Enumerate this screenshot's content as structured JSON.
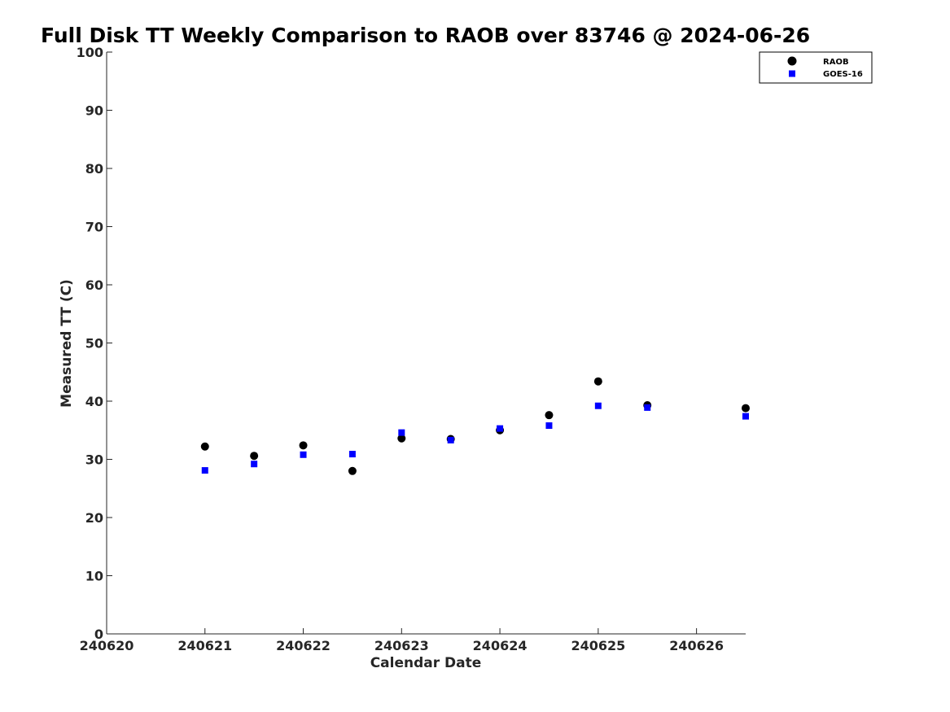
{
  "chart_data": {
    "type": "scatter",
    "title": "Full Disk TT Weekly Comparison to RAOB over 83746 @ 2024-06-26",
    "xlabel": "Calendar Date",
    "ylabel": "Measured TT (C)",
    "xlim": [
      240620,
      240626.5
    ],
    "ylim": [
      0,
      100
    ],
    "xticks": [
      240620,
      240621,
      240622,
      240623,
      240624,
      240625,
      240626
    ],
    "xtick_labels": [
      "240620",
      "240621",
      "240622",
      "240623",
      "240624",
      "240625",
      "240626"
    ],
    "yticks": [
      0,
      10,
      20,
      30,
      40,
      50,
      60,
      70,
      80,
      90,
      100
    ],
    "ytick_labels": [
      "0",
      "10",
      "20",
      "30",
      "40",
      "50",
      "60",
      "70",
      "80",
      "90",
      "100"
    ],
    "grid": false,
    "legend_position": "top-right",
    "series": [
      {
        "name": "RAOB",
        "marker": "circle",
        "color": "#000000",
        "x": [
          240621,
          240621.5,
          240622,
          240622.5,
          240623,
          240623.5,
          240624,
          240624.5,
          240625,
          240625.5,
          240626.5
        ],
        "y": [
          32.2,
          30.6,
          32.4,
          28.0,
          33.6,
          33.5,
          35.0,
          37.6,
          43.4,
          39.3,
          38.8
        ]
      },
      {
        "name": "GOES-16",
        "marker": "square",
        "color": "#0000ff",
        "x": [
          240621,
          240621.5,
          240622,
          240622.5,
          240623,
          240623.5,
          240624,
          240624.5,
          240625,
          240625.5,
          240626.5
        ],
        "y": [
          28.1,
          29.2,
          30.8,
          30.9,
          34.6,
          33.3,
          35.3,
          35.8,
          39.2,
          38.9,
          37.4
        ]
      }
    ]
  }
}
